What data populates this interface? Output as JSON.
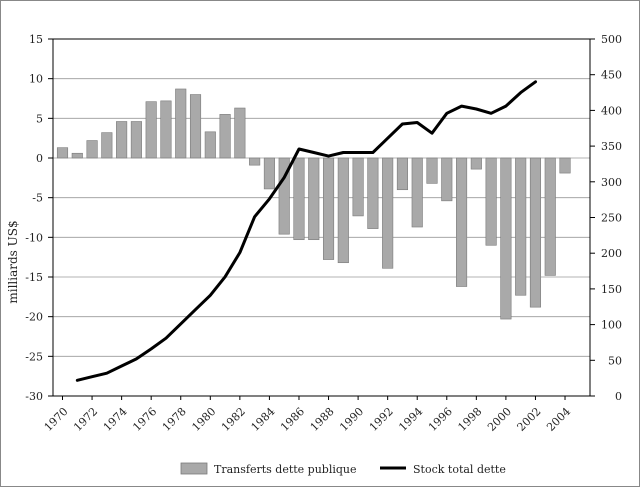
{
  "chart_data": {
    "type": "bar",
    "y_label_left": "milliards US$",
    "ylim_left": [
      -30,
      15
    ],
    "yticks_left": [
      15,
      10,
      5,
      0,
      -5,
      -10,
      -15,
      -20,
      -25,
      -30
    ],
    "ylim_right": [
      0,
      500
    ],
    "yticks_right": [
      500,
      450,
      400,
      350,
      300,
      250,
      200,
      150,
      100,
      50,
      0
    ],
    "x_tick_labels": [
      "1970",
      "1972",
      "1974",
      "1976",
      "1978",
      "1980",
      "1982",
      "1984",
      "1986",
      "1988",
      "1990",
      "1992",
      "1994",
      "1996",
      "1998",
      "2000",
      "2002",
      "2004"
    ],
    "grid": "horizontal",
    "legend_position": "bottom",
    "colors": {
      "bar": "#a9a9a9",
      "bar_stroke": "#7a7a7a",
      "line": "#000000",
      "grid": "#9a9a9a"
    },
    "series": [
      {
        "name": "Transferts dette publique",
        "type": "bar",
        "axis": "left",
        "x": [
          1970,
          1971,
          1972,
          1973,
          1974,
          1975,
          1976,
          1977,
          1978,
          1979,
          1980,
          1981,
          1982,
          1983,
          1984,
          1985,
          1986,
          1987,
          1988,
          1989,
          1990,
          1991,
          1992,
          1993,
          1994,
          1995,
          1996,
          1997,
          1998,
          1999,
          2000,
          2001,
          2002,
          2003,
          2004
        ],
        "values": [
          1.3,
          0.6,
          2.2,
          3.2,
          4.6,
          4.6,
          7.1,
          7.2,
          8.7,
          8.0,
          3.3,
          5.5,
          6.3,
          -0.9,
          -3.9,
          -9.6,
          -10.3,
          -10.3,
          -12.8,
          -13.2,
          -7.3,
          -8.9,
          -13.9,
          -4.0,
          -8.7,
          -3.2,
          -5.4,
          -16.2,
          -1.4,
          -11.0,
          -20.3,
          -17.3,
          -18.8,
          -14.8,
          -1.9
        ]
      },
      {
        "name": "Stock total dette",
        "type": "line",
        "axis": "right",
        "x": [
          1970,
          1971,
          1972,
          1973,
          1974,
          1975,
          1976,
          1977,
          1978,
          1979,
          1980,
          1981,
          1982,
          1983,
          1984,
          1985,
          1986,
          1987,
          1988,
          1989,
          1990,
          1991,
          1992,
          1993,
          1994,
          1995,
          1996,
          1997,
          1998,
          1999,
          2000,
          2001,
          2002,
          2003,
          2004
        ],
        "values": [
          22,
          27,
          32,
          42,
          52,
          66,
          81,
          101,
          121,
          141,
          167,
          201,
          251,
          276,
          306,
          346,
          341,
          336,
          341,
          341,
          341,
          361,
          381,
          383,
          368,
          396,
          406,
          402,
          396,
          406,
          425,
          440,
          null,
          null,
          null
        ]
      }
    ]
  }
}
